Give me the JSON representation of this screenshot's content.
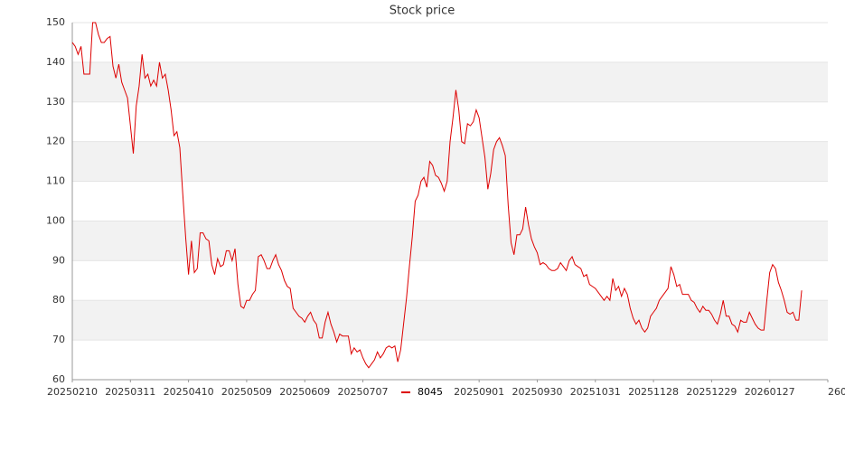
{
  "chart_data": {
    "type": "line",
    "title": "Stock price",
    "series": [
      {
        "name": "8045",
        "color": "#dd0000",
        "values": [
          145,
          144,
          142,
          144,
          137,
          137,
          137,
          150,
          150,
          147,
          145,
          145,
          146,
          146.5,
          139,
          136,
          139.5,
          135,
          133,
          131,
          124,
          117,
          129,
          134,
          142,
          136,
          137,
          134,
          135.5,
          134,
          140,
          136,
          137,
          133,
          128,
          121.5,
          122.5,
          118.5,
          107,
          96,
          86.5,
          95,
          87,
          88,
          97,
          97,
          95.5,
          95,
          89,
          86.5,
          90.5,
          88.5,
          89,
          92.5,
          92.5,
          90,
          93,
          84,
          78.5,
          78,
          80,
          80,
          81.5,
          82.5,
          91,
          91.5,
          90,
          88,
          88,
          90,
          91.5,
          89,
          87.5,
          85,
          83.5,
          83,
          78,
          77,
          76,
          75.5,
          74.5,
          76,
          77,
          75,
          74,
          70.5,
          70.5,
          74.5,
          77,
          74,
          72,
          69.5,
          71.5,
          71,
          71,
          71,
          66.5,
          68,
          67,
          67.5,
          65.5,
          64,
          63,
          64,
          65,
          67,
          65.5,
          66.5,
          68,
          68.5,
          68,
          68.5,
          64.5,
          67.5,
          74,
          80.5,
          88.5,
          96,
          105,
          106.5,
          110,
          111,
          108.5,
          115,
          114,
          111.5,
          111,
          109.5,
          107.5,
          110,
          120,
          126,
          133,
          128,
          120,
          119.5,
          124.5,
          124,
          125,
          128,
          126,
          121,
          116,
          108,
          112,
          118,
          120,
          121,
          119,
          116.5,
          104,
          94.5,
          91.5,
          96.5,
          96.5,
          98,
          103.5,
          99,
          95.5,
          93.5,
          92,
          89,
          89.5,
          89,
          88,
          87.5,
          87.5,
          88,
          89.5,
          88.5,
          87.5,
          90,
          91,
          89,
          88.5,
          88,
          86,
          86.5,
          84,
          83.5,
          83,
          82,
          81,
          80,
          81,
          80,
          85.5,
          82.5,
          83.5,
          81,
          83,
          81.5,
          78,
          75.5,
          74,
          75,
          73,
          72,
          73,
          76,
          77,
          78,
          80,
          81,
          82,
          83,
          88.5,
          86.5,
          83.5,
          84,
          81.5,
          81.5,
          81.5,
          80,
          79.5,
          78,
          77,
          78.5,
          77.5,
          77.5,
          76.5,
          75,
          74,
          76.5,
          80,
          76,
          76,
          74,
          73.5,
          72,
          75,
          74.5,
          74.5,
          77,
          75.5,
          74,
          73,
          72.5,
          72.5,
          80,
          87,
          89,
          88,
          84.5,
          82.5,
          80,
          77,
          76.5,
          77,
          75,
          75,
          82.5
        ]
      }
    ],
    "xlim": [
      0,
      260
    ],
    "xticks": [
      {
        "value": 0,
        "label": "20250210"
      },
      {
        "value": 20,
        "label": "20250311"
      },
      {
        "value": 40,
        "label": "20250410"
      },
      {
        "value": 60,
        "label": "20250509"
      },
      {
        "value": 80,
        "label": "20250609"
      },
      {
        "value": 100,
        "label": "20250707"
      },
      {
        "value": 140,
        "label": "20250901"
      },
      {
        "value": 160,
        "label": "20250930"
      },
      {
        "value": 180,
        "label": "20251031"
      },
      {
        "value": 200,
        "label": "20251128"
      },
      {
        "value": 220,
        "label": "20251229"
      },
      {
        "value": 240,
        "label": "20260127"
      },
      260
    ],
    "ylim": [
      60,
      150
    ],
    "yticks": [
      60,
      70,
      80,
      90,
      100,
      110,
      120,
      130,
      140,
      150
    ],
    "grid": true,
    "legend": "bottom"
  }
}
